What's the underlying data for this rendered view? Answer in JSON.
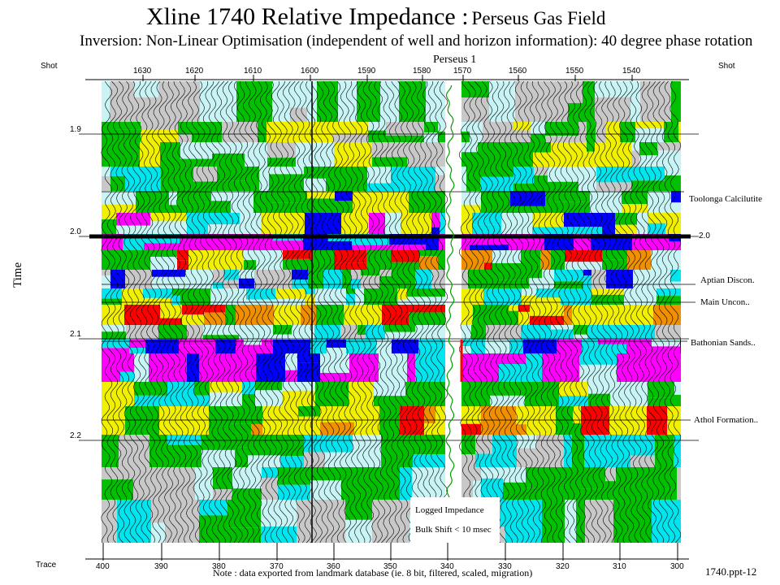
{
  "title": {
    "main": "Xline 1740 Relative Impedance :",
    "field": "Perseus Gas Field"
  },
  "subtitle": "Inversion: Non-Linear Optimisation (independent of well and horizon information): 40 degree phase rotation",
  "axes": {
    "shot_label_left": "Shot",
    "shot_label_right": "Shot",
    "trace_label": "Trace",
    "time_label": "Time",
    "shot_ticks": [
      "1630",
      "1620",
      "1610",
      "1600",
      "1590",
      "1580",
      "1570",
      "1560",
      "1550",
      "1540"
    ],
    "trace_ticks": [
      "400",
      "390",
      "380",
      "370",
      "360",
      "350",
      "340",
      "330",
      "320",
      "310",
      "300"
    ],
    "time_ticks": [
      "1.9",
      "2.0",
      "2.1",
      "2.2"
    ],
    "time_right_tick": "2.0"
  },
  "well": {
    "name": "Perseus 1"
  },
  "horizons": [
    {
      "key": "toolonga",
      "label": "Toolonga Calcilutite"
    },
    {
      "key": "aptian",
      "label": "Aptian Discon."
    },
    {
      "key": "main",
      "label": "Main Uncon.."
    },
    {
      "key": "bathonian",
      "label": "Bathonian Sands.."
    },
    {
      "key": "athol",
      "label": "Athol Formation.."
    }
  ],
  "legend": {
    "line1": "Logged Impedance",
    "line2": "Bulk Shift < 10 msec"
  },
  "note": "Note : data exported from landmark database (ie. 8 bit, filtered, scaled, migration)",
  "slide_ref": "1740.ppt-12",
  "palette": {
    "magenta": "#ff00ff",
    "blue": "#0000ff",
    "cyan": "#00e5ee",
    "lightcyan": "#c8f4f6",
    "gray": "#c8c8c8",
    "green": "#00c000",
    "yellow": "#f0f000",
    "orange": "#f09000",
    "red": "#ff0000"
  }
}
